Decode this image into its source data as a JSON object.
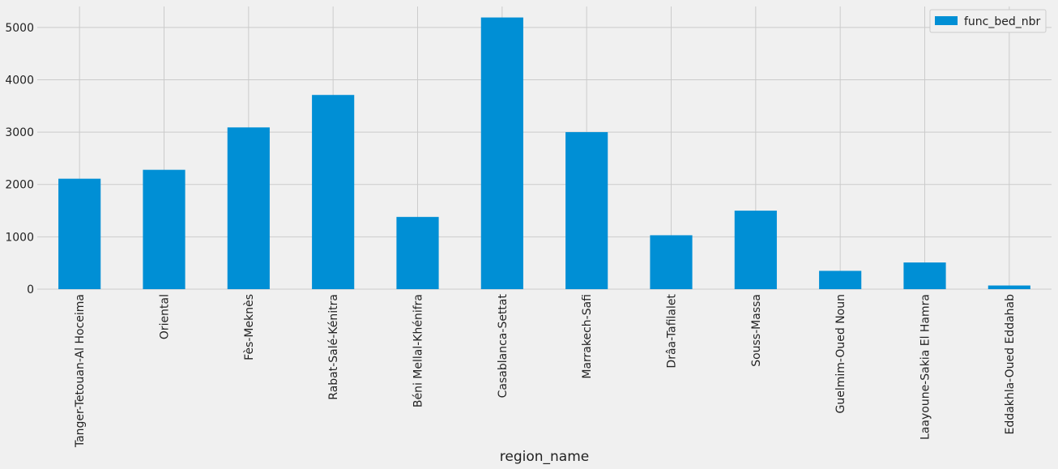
{
  "chart_data": {
    "type": "bar",
    "categories": [
      "Tanger-Tetouan-Al Hoceima",
      "Oriental",
      "Fès-Meknès",
      "Rabat-Salé-Kénitra",
      "Béni Mellal-Khénifra",
      "Casablanca-Settat",
      "Marrakech-Safi",
      "Drâa-Tafilalet",
      "Souss-Massa",
      "Guelmim-Oued Noun",
      "Laayoune-Sakia El Hamra",
      "Eddakhla-Oued Eddahab"
    ],
    "series": [
      {
        "name": "func_bed_nbr",
        "values": [
          2110,
          2280,
          3090,
          3710,
          1380,
          5190,
          3000,
          1030,
          1500,
          350,
          510,
          70
        ],
        "color": "#008fd5"
      }
    ],
    "xlabel": "region_name",
    "ylabel": "",
    "ylim": [
      0,
      5400
    ],
    "yticks": [
      0,
      1000,
      2000,
      3000,
      4000,
      5000
    ],
    "grid": true,
    "legend_position": "top-right"
  }
}
